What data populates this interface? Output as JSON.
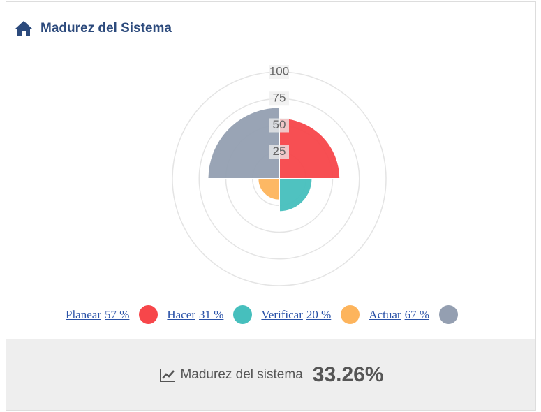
{
  "header": {
    "title": "Madurez del Sistema"
  },
  "chart_data": {
    "type": "polarArea",
    "categories": [
      "Planear",
      "Hacer",
      "Verificar",
      "Actuar"
    ],
    "values": [
      57,
      31,
      20,
      67
    ],
    "value_labels": [
      "57 %",
      "31 %",
      "20 %",
      "67 %"
    ],
    "colors": [
      "#f7464a",
      "#46bfbd",
      "#fdb45c",
      "#949fb1"
    ],
    "rlim": [
      0,
      100
    ],
    "rticks": [
      25,
      50,
      75,
      100
    ],
    "grid": true
  },
  "footer": {
    "label": "Madurez del sistema",
    "value": "33.26%"
  }
}
